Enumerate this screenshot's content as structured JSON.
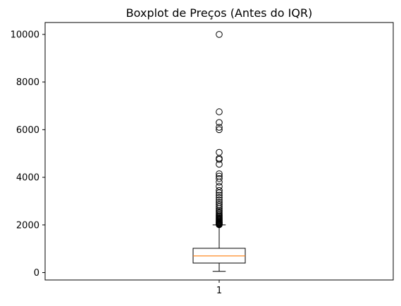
{
  "chart_data": {
    "type": "box",
    "title": "Boxplot de Preços (Antes do IQR)",
    "xlabel": "",
    "ylabel": "",
    "categories": [
      "1"
    ],
    "ylim": [
      -310,
      10500
    ],
    "yticks": [
      0,
      2000,
      4000,
      6000,
      8000,
      10000
    ],
    "grid": false,
    "box": {
      "whisker_low": 50,
      "q1": 400,
      "median": 700,
      "q3": 1020,
      "whisker_high": 2000
    },
    "outliers": [
      2010,
      2030,
      2050,
      2070,
      2090,
      2110,
      2130,
      2160,
      2190,
      2220,
      2250,
      2280,
      2320,
      2360,
      2400,
      2450,
      2500,
      2560,
      2620,
      2700,
      2780,
      2860,
      2950,
      3050,
      3150,
      3250,
      3350,
      3450,
      3620,
      3800,
      3950,
      4050,
      4150,
      4550,
      4750,
      4800,
      5050,
      6000,
      6100,
      6300,
      6750,
      10000
    ],
    "colors": {
      "box": "#000000",
      "median": "#ff7f0e",
      "outlier": "#000000"
    }
  }
}
